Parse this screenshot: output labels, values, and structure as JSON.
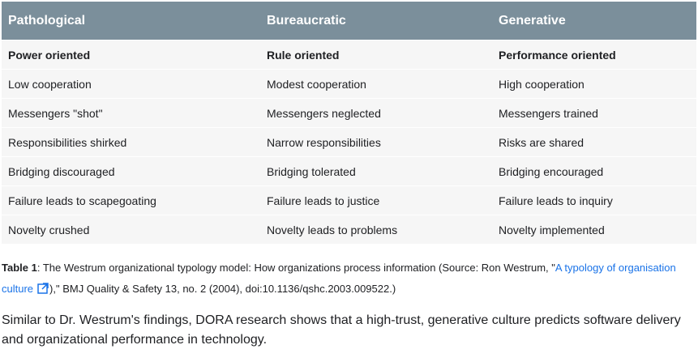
{
  "table": {
    "header": [
      "Pathological",
      "Bureaucratic",
      "Generative"
    ],
    "rows": [
      [
        "Power oriented",
        "Rule oriented",
        "Performance oriented"
      ],
      [
        "Low cooperation",
        "Modest cooperation",
        "High cooperation"
      ],
      [
        "Messengers \"shot\"",
        "Messengers neglected",
        "Messengers trained"
      ],
      [
        "Responsibilities shirked",
        "Narrow responsibilities",
        "Risks are shared"
      ],
      [
        "Bridging discouraged",
        "Bridging tolerated",
        "Bridging encouraged"
      ],
      [
        "Failure leads to scapegoating",
        "Failure leads to justice",
        "Failure leads to inquiry"
      ],
      [
        "Novelty crushed",
        "Novelty leads to problems",
        "Novelty implemented"
      ]
    ]
  },
  "caption": {
    "label": "Table 1",
    "before": ": The Westrum organizational typology model: How organizations process information (Source: Ron Westrum, \"",
    "link": "A typology of organisation culture",
    "after": "),\" BMJ Quality & Safety 13, no. 2 (2004), doi:10.1136/qshc.2003.009522.)"
  },
  "paragraph": "Similar to Dr. Westrum's findings, DORA research shows that a high-trust, generative culture predicts software delivery and organizational performance in technology."
}
